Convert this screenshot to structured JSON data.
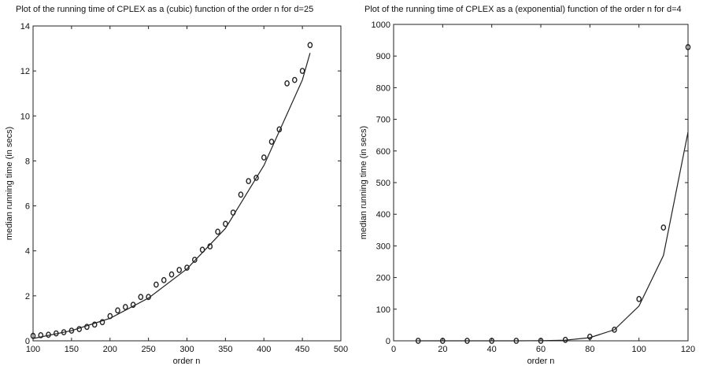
{
  "chart_data": [
    {
      "type": "scatter",
      "title": "Plot of the running time of CPLEX as a (cubic) function of the order n for d=25",
      "xlabel": "order n",
      "ylabel": "median running time (in secs)",
      "xlim": [
        100,
        500
      ],
      "ylim": [
        0,
        14
      ],
      "xticks": [
        100,
        150,
        200,
        250,
        300,
        350,
        400,
        450,
        500
      ],
      "yticks": [
        0,
        2,
        4,
        6,
        8,
        10,
        12,
        14
      ],
      "series": [
        {
          "marker": "circle",
          "x": [
            100,
            110,
            120,
            130,
            140,
            150,
            160,
            170,
            180,
            190,
            200,
            210,
            220,
            230,
            240,
            250,
            260,
            270,
            280,
            290,
            300,
            310,
            320,
            330,
            340,
            350,
            360,
            370,
            380,
            390,
            400,
            410,
            420,
            430,
            440,
            450,
            460
          ],
          "y": [
            0.22,
            0.25,
            0.27,
            0.33,
            0.38,
            0.45,
            0.52,
            0.62,
            0.72,
            0.83,
            1.1,
            1.35,
            1.5,
            1.6,
            1.95,
            1.95,
            2.5,
            2.7,
            2.95,
            3.15,
            3.25,
            3.6,
            4.05,
            4.2,
            4.85,
            5.2,
            5.7,
            6.5,
            7.1,
            7.25,
            8.15,
            8.85,
            9.4,
            11.45,
            11.6,
            12.0,
            13.15
          ]
        },
        {
          "marker": "line",
          "x": [
            100,
            150,
            200,
            250,
            300,
            350,
            400,
            450,
            460
          ],
          "y": [
            0.1,
            0.45,
            1.0,
            1.9,
            3.2,
            5.0,
            7.8,
            11.6,
            12.8
          ]
        }
      ]
    },
    {
      "type": "scatter",
      "title": "Plot of the running time of CPLEX as a (exponential) function of the order n for d=4",
      "xlabel": "order n",
      "ylabel": "median running time (in secs)",
      "xlim": [
        0,
        120
      ],
      "ylim": [
        0,
        1000
      ],
      "xticks": [
        0,
        20,
        40,
        60,
        80,
        100,
        120
      ],
      "yticks": [
        0,
        100,
        200,
        300,
        400,
        500,
        600,
        700,
        800,
        900,
        1000
      ],
      "series": [
        {
          "marker": "circle",
          "x": [
            10,
            20,
            30,
            40,
            50,
            60,
            70,
            80,
            90,
            100,
            110,
            120
          ],
          "y": [
            0,
            0,
            0,
            0,
            0,
            0,
            3,
            13,
            35,
            132,
            358,
            928
          ]
        },
        {
          "marker": "line",
          "x": [
            10,
            20,
            30,
            40,
            50,
            60,
            70,
            80,
            90,
            100,
            110,
            120
          ],
          "y": [
            0,
            0,
            0,
            0,
            0,
            0.5,
            2,
            10,
            35,
            110,
            270,
            660
          ]
        }
      ]
    }
  ]
}
